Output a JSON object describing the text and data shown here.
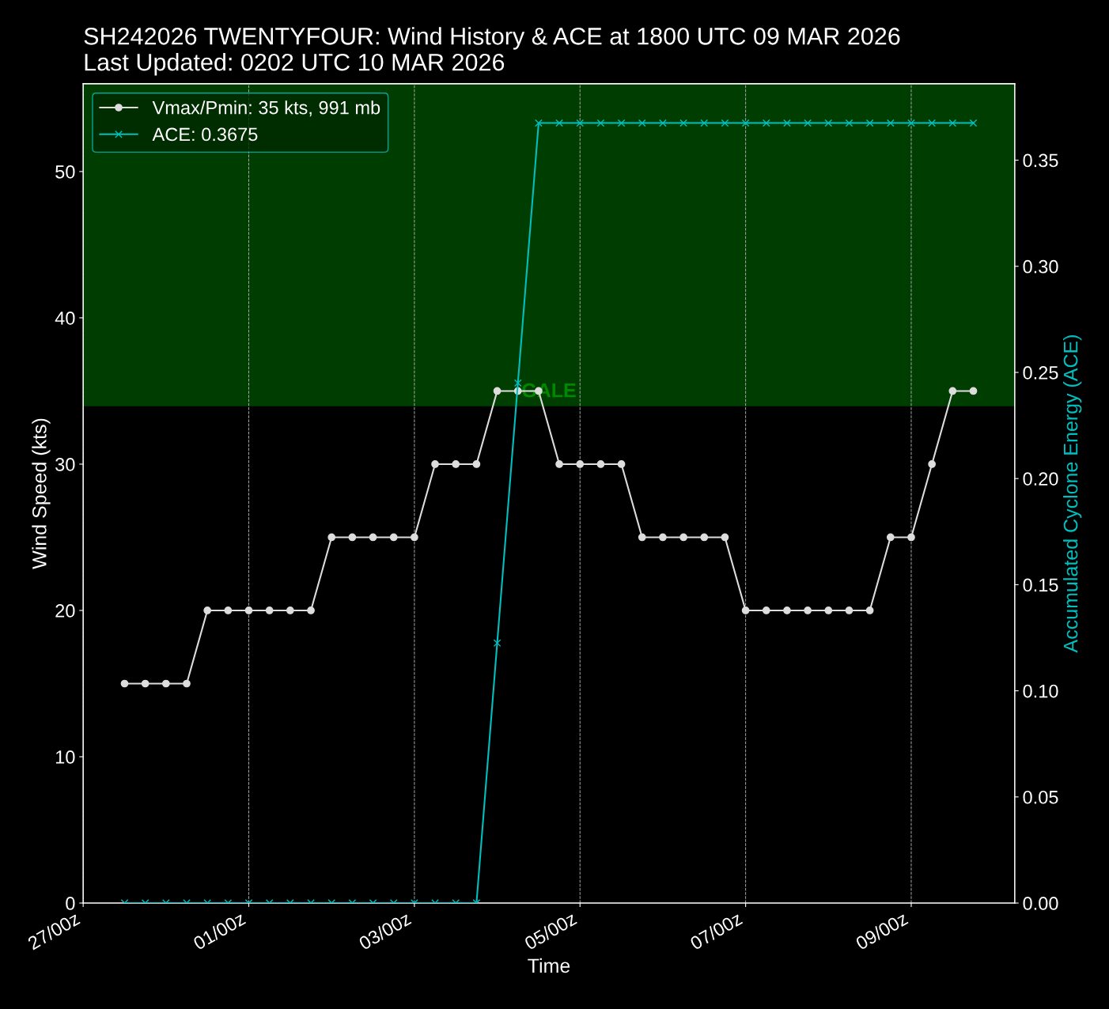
{
  "chart_data": {
    "type": "line",
    "title": "SH242026 TWENTYFOUR: Wind History & ACE at 1800 UTC 09 MAR 2026",
    "subtitle": "Last Updated: 0202 UTC 10 MAR 2026",
    "xlabel": "Time",
    "ylabel": "Wind Speed (kts)",
    "y2label": "Accumulated Cyclone Energy (ACE)",
    "x": [
      "2026-02-27T12:00",
      "2026-02-27T18:00",
      "2026-02-28T00:00",
      "2026-02-28T06:00",
      "2026-02-28T12:00",
      "2026-02-28T18:00",
      "2026-03-01T00:00",
      "2026-03-01T06:00",
      "2026-03-01T12:00",
      "2026-03-01T18:00",
      "2026-03-02T00:00",
      "2026-03-02T06:00",
      "2026-03-02T12:00",
      "2026-03-02T18:00",
      "2026-03-03T00:00",
      "2026-03-03T06:00",
      "2026-03-03T12:00",
      "2026-03-03T18:00",
      "2026-03-04T00:00",
      "2026-03-04T06:00",
      "2026-03-04T12:00",
      "2026-03-04T18:00",
      "2026-03-05T00:00",
      "2026-03-05T06:00",
      "2026-03-05T12:00",
      "2026-03-05T18:00",
      "2026-03-06T00:00",
      "2026-03-06T06:00",
      "2026-03-06T12:00",
      "2026-03-06T18:00",
      "2026-03-07T00:00",
      "2026-03-07T06:00",
      "2026-03-07T12:00",
      "2026-03-07T18:00",
      "2026-03-08T00:00",
      "2026-03-08T06:00",
      "2026-03-08T12:00",
      "2026-03-08T18:00",
      "2026-03-09T00:00",
      "2026-03-09T06:00",
      "2026-03-09T12:00",
      "2026-03-09T18:00"
    ],
    "series": [
      {
        "name": "Vmax/Pmin: 35 kts, 991 mb",
        "color": "#dddddd",
        "marker": "circle",
        "values": [
          15,
          15,
          15,
          15,
          20,
          20,
          20,
          20,
          20,
          20,
          25,
          25,
          25,
          25,
          25,
          30,
          30,
          30,
          35,
          35,
          35,
          30,
          30,
          30,
          30,
          25,
          25,
          25,
          25,
          25,
          20,
          20,
          20,
          20,
          20,
          20,
          20,
          25,
          25,
          30,
          35,
          35
        ]
      },
      {
        "name": "ACE: 0.3675",
        "color": "#00bfbf",
        "marker": "cross",
        "axis": "y2",
        "values": [
          0,
          0,
          0,
          0,
          0,
          0,
          0,
          0,
          0,
          0,
          0,
          0,
          0,
          0,
          0,
          0,
          0,
          0,
          0.1225,
          0.245,
          0.3675,
          0.3675,
          0.3675,
          0.3675,
          0.3675,
          0.3675,
          0.3675,
          0.3675,
          0.3675,
          0.3675,
          0.3675,
          0.3675,
          0.3675,
          0.3675,
          0.3675,
          0.3675,
          0.3675,
          0.3675,
          0.3675,
          0.3675,
          0.3675,
          0.3675
        ]
      }
    ],
    "xlim": [
      "2026-02-27T00:00",
      "2026-03-10T06:00"
    ],
    "xticks": [
      {
        "value": "2026-02-27T00:00",
        "label": "27/00z"
      },
      {
        "value": "2026-03-01T00:00",
        "label": "01/00z"
      },
      {
        "value": "2026-03-03T00:00",
        "label": "03/00z"
      },
      {
        "value": "2026-03-05T00:00",
        "label": "05/00z"
      },
      {
        "value": "2026-03-07T00:00",
        "label": "07/00z"
      },
      {
        "value": "2026-03-09T00:00",
        "label": "09/00z"
      }
    ],
    "ylim": [
      0,
      56
    ],
    "yticks": [
      0,
      10,
      20,
      30,
      40,
      50
    ],
    "y2lim": [
      0,
      0.386
    ],
    "y2ticks": [
      {
        "value": 0,
        "label": "0.00"
      },
      {
        "value": 0.05,
        "label": "0.05"
      },
      {
        "value": 0.1,
        "label": "0.10"
      },
      {
        "value": 0.15,
        "label": "0.15"
      },
      {
        "value": 0.2,
        "label": "0.20"
      },
      {
        "value": 0.25,
        "label": "0.25"
      },
      {
        "value": 0.3,
        "label": "0.30"
      },
      {
        "value": 0.35,
        "label": "0.35"
      }
    ],
    "bands": [
      {
        "axis": "y",
        "from": 34,
        "to": 56,
        "label": "GALE",
        "color": "#003d00"
      }
    ],
    "grid": "x",
    "legend": "top left",
    "line_style": "solid"
  }
}
